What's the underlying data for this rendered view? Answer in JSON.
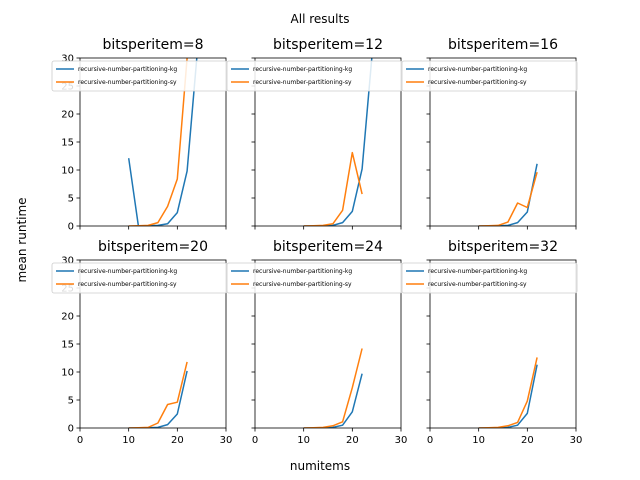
{
  "figure": {
    "title": "All results",
    "xlabel": "numitems",
    "ylabel": "mean runtime"
  },
  "chart_data": {
    "type": "line",
    "xlim": [
      0,
      30
    ],
    "ylim": [
      0,
      30
    ],
    "xticks": [
      0,
      10,
      20,
      30
    ],
    "yticks": [
      0,
      5,
      10,
      15,
      20,
      25,
      30
    ],
    "grid": false,
    "legend_placement": "top",
    "colors": {
      "kg": "#1f77b4",
      "sy": "#ff7f0e"
    },
    "panels": [
      {
        "title": "bitsperitem=8",
        "series": [
          {
            "name": "recursive-number-partitioning-kg",
            "x": [
              10,
              12,
              14,
              16,
              18,
              20,
              22,
              24
            ],
            "y": [
              12.1,
              0.0,
              0.05,
              0.1,
              0.4,
              2.4,
              9.8,
              30
            ]
          },
          {
            "name": "recursive-number-partitioning-sy",
            "x": [
              10,
              12,
              14,
              16,
              18,
              20,
              22
            ],
            "y": [
              0.0,
              0.05,
              0.1,
              0.6,
              3.5,
              8.4,
              30
            ]
          }
        ]
      },
      {
        "title": "bitsperitem=12",
        "series": [
          {
            "name": "recursive-number-partitioning-kg",
            "x": [
              10,
              12,
              14,
              16,
              18,
              20,
              22,
              24
            ],
            "y": [
              0.0,
              0.0,
              0.05,
              0.1,
              0.6,
              2.6,
              10.2,
              30
            ]
          },
          {
            "name": "recursive-number-partitioning-sy",
            "x": [
              10,
              12,
              14,
              16,
              18,
              20,
              22
            ],
            "y": [
              0.0,
              0.05,
              0.1,
              0.4,
              2.8,
              13.1,
              5.7
            ]
          }
        ]
      },
      {
        "title": "bitsperitem=16",
        "series": [
          {
            "name": "recursive-number-partitioning-kg",
            "x": [
              10,
              12,
              14,
              16,
              18,
              20,
              22
            ],
            "y": [
              0.0,
              0.0,
              0.05,
              0.1,
              0.6,
              2.5,
              11.1
            ]
          },
          {
            "name": "recursive-number-partitioning-sy",
            "x": [
              10,
              12,
              14,
              16,
              18,
              20,
              22
            ],
            "y": [
              0.0,
              0.05,
              0.1,
              0.7,
              4.1,
              3.3,
              9.6
            ]
          }
        ]
      },
      {
        "title": "bitsperitem=20",
        "series": [
          {
            "name": "recursive-number-partitioning-kg",
            "x": [
              10,
              12,
              14,
              16,
              18,
              20,
              22
            ],
            "y": [
              0.0,
              0.0,
              0.05,
              0.1,
              0.6,
              2.5,
              10.2
            ]
          },
          {
            "name": "recursive-number-partitioning-sy",
            "x": [
              10,
              12,
              14,
              16,
              18,
              20,
              22
            ],
            "y": [
              0.0,
              0.05,
              0.1,
              0.9,
              4.2,
              4.6,
              11.8
            ]
          }
        ]
      },
      {
        "title": "bitsperitem=24",
        "series": [
          {
            "name": "recursive-number-partitioning-kg",
            "x": [
              10,
              12,
              14,
              16,
              18,
              20,
              22
            ],
            "y": [
              0.0,
              0.0,
              0.05,
              0.1,
              0.5,
              2.9,
              9.7
            ]
          },
          {
            "name": "recursive-number-partitioning-sy",
            "x": [
              10,
              12,
              14,
              16,
              18,
              20,
              22
            ],
            "y": [
              0.0,
              0.05,
              0.1,
              0.4,
              1.1,
              7.2,
              14.2
            ]
          }
        ]
      },
      {
        "title": "bitsperitem=32",
        "series": [
          {
            "name": "recursive-number-partitioning-kg",
            "x": [
              10,
              12,
              14,
              16,
              18,
              20,
              22
            ],
            "y": [
              0.0,
              0.0,
              0.05,
              0.1,
              0.5,
              2.6,
              11.3
            ]
          },
          {
            "name": "recursive-number-partitioning-sy",
            "x": [
              10,
              12,
              14,
              16,
              18,
              20,
              22
            ],
            "y": [
              0.0,
              0.05,
              0.1,
              0.4,
              1.0,
              4.8,
              12.6
            ]
          }
        ]
      }
    ]
  }
}
